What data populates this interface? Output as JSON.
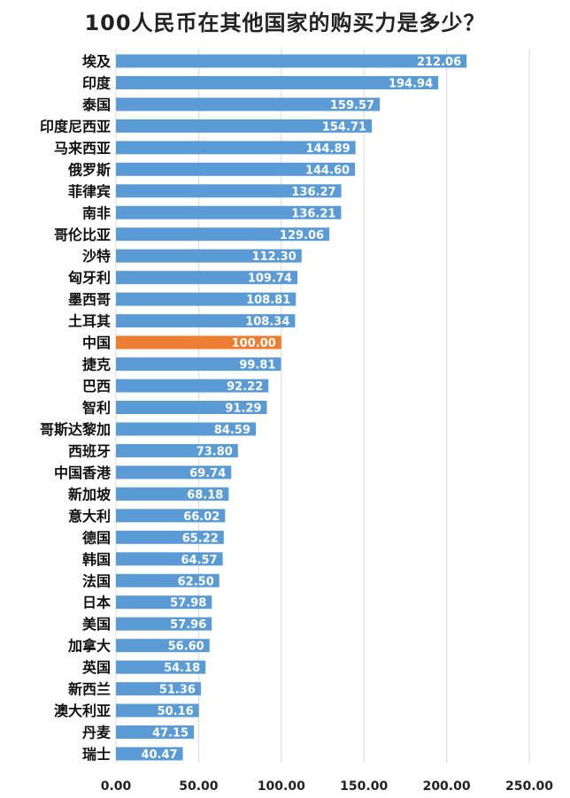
{
  "chart_data": {
    "type": "bar",
    "orientation": "horizontal",
    "title": "100人民币在其他国家的购买力是多少？",
    "categories": [
      "埃及",
      "印度",
      "泰国",
      "印度尼西亚",
      "马来西亚",
      "俄罗斯",
      "菲律宾",
      "南非",
      "哥伦比亚",
      "沙特",
      "匈牙利",
      "墨西哥",
      "土耳其",
      "中国",
      "捷克",
      "巴西",
      "智利",
      "哥斯达黎加",
      "西班牙",
      "中国香港",
      "新加坡",
      "意大利",
      "德国",
      "韩国",
      "法国",
      "日本",
      "美国",
      "加拿大",
      "英国",
      "新西兰",
      "澳大利亚",
      "丹麦",
      "瑞士"
    ],
    "value_labels": [
      "212.06",
      "194.94",
      "159.57",
      "154.71",
      "144.89",
      "144.60",
      "136.27",
      "136.21",
      "129.06",
      "112.30",
      "109.74",
      "108.81",
      "108.34",
      "100.00",
      "99.81",
      "92.22",
      "91.29",
      "84.59",
      "73.80",
      "69.74",
      "68.18",
      "66.02",
      "65.22",
      "64.57",
      "62.50",
      "57.98",
      "57.96",
      "56.60",
      "54.18",
      "51.36",
      "50.16",
      "47.15",
      "40.47"
    ],
    "values": [
      212.06,
      194.94,
      159.57,
      154.71,
      144.89,
      144.6,
      136.27,
      136.21,
      129.06,
      112.3,
      109.74,
      108.81,
      108.34,
      100.0,
      99.81,
      92.22,
      91.29,
      84.59,
      73.8,
      69.74,
      68.18,
      66.02,
      65.22,
      64.57,
      62.5,
      57.98,
      57.96,
      56.6,
      54.18,
      51.36,
      50.16,
      47.15,
      40.47
    ],
    "highlight_category": "中国",
    "xlim": [
      0,
      250
    ],
    "xticks": [
      0,
      50,
      100,
      150,
      200,
      250
    ],
    "xtick_labels": [
      "0.00",
      "50.00",
      "100.00",
      "150.00",
      "200.00",
      "250.00"
    ],
    "grid": "vertical",
    "xlabel": "",
    "ylabel": ""
  },
  "colors": {
    "bar": "#5b9bd5",
    "highlight": "#ed7d31",
    "grid": "#d9d9d9"
  }
}
